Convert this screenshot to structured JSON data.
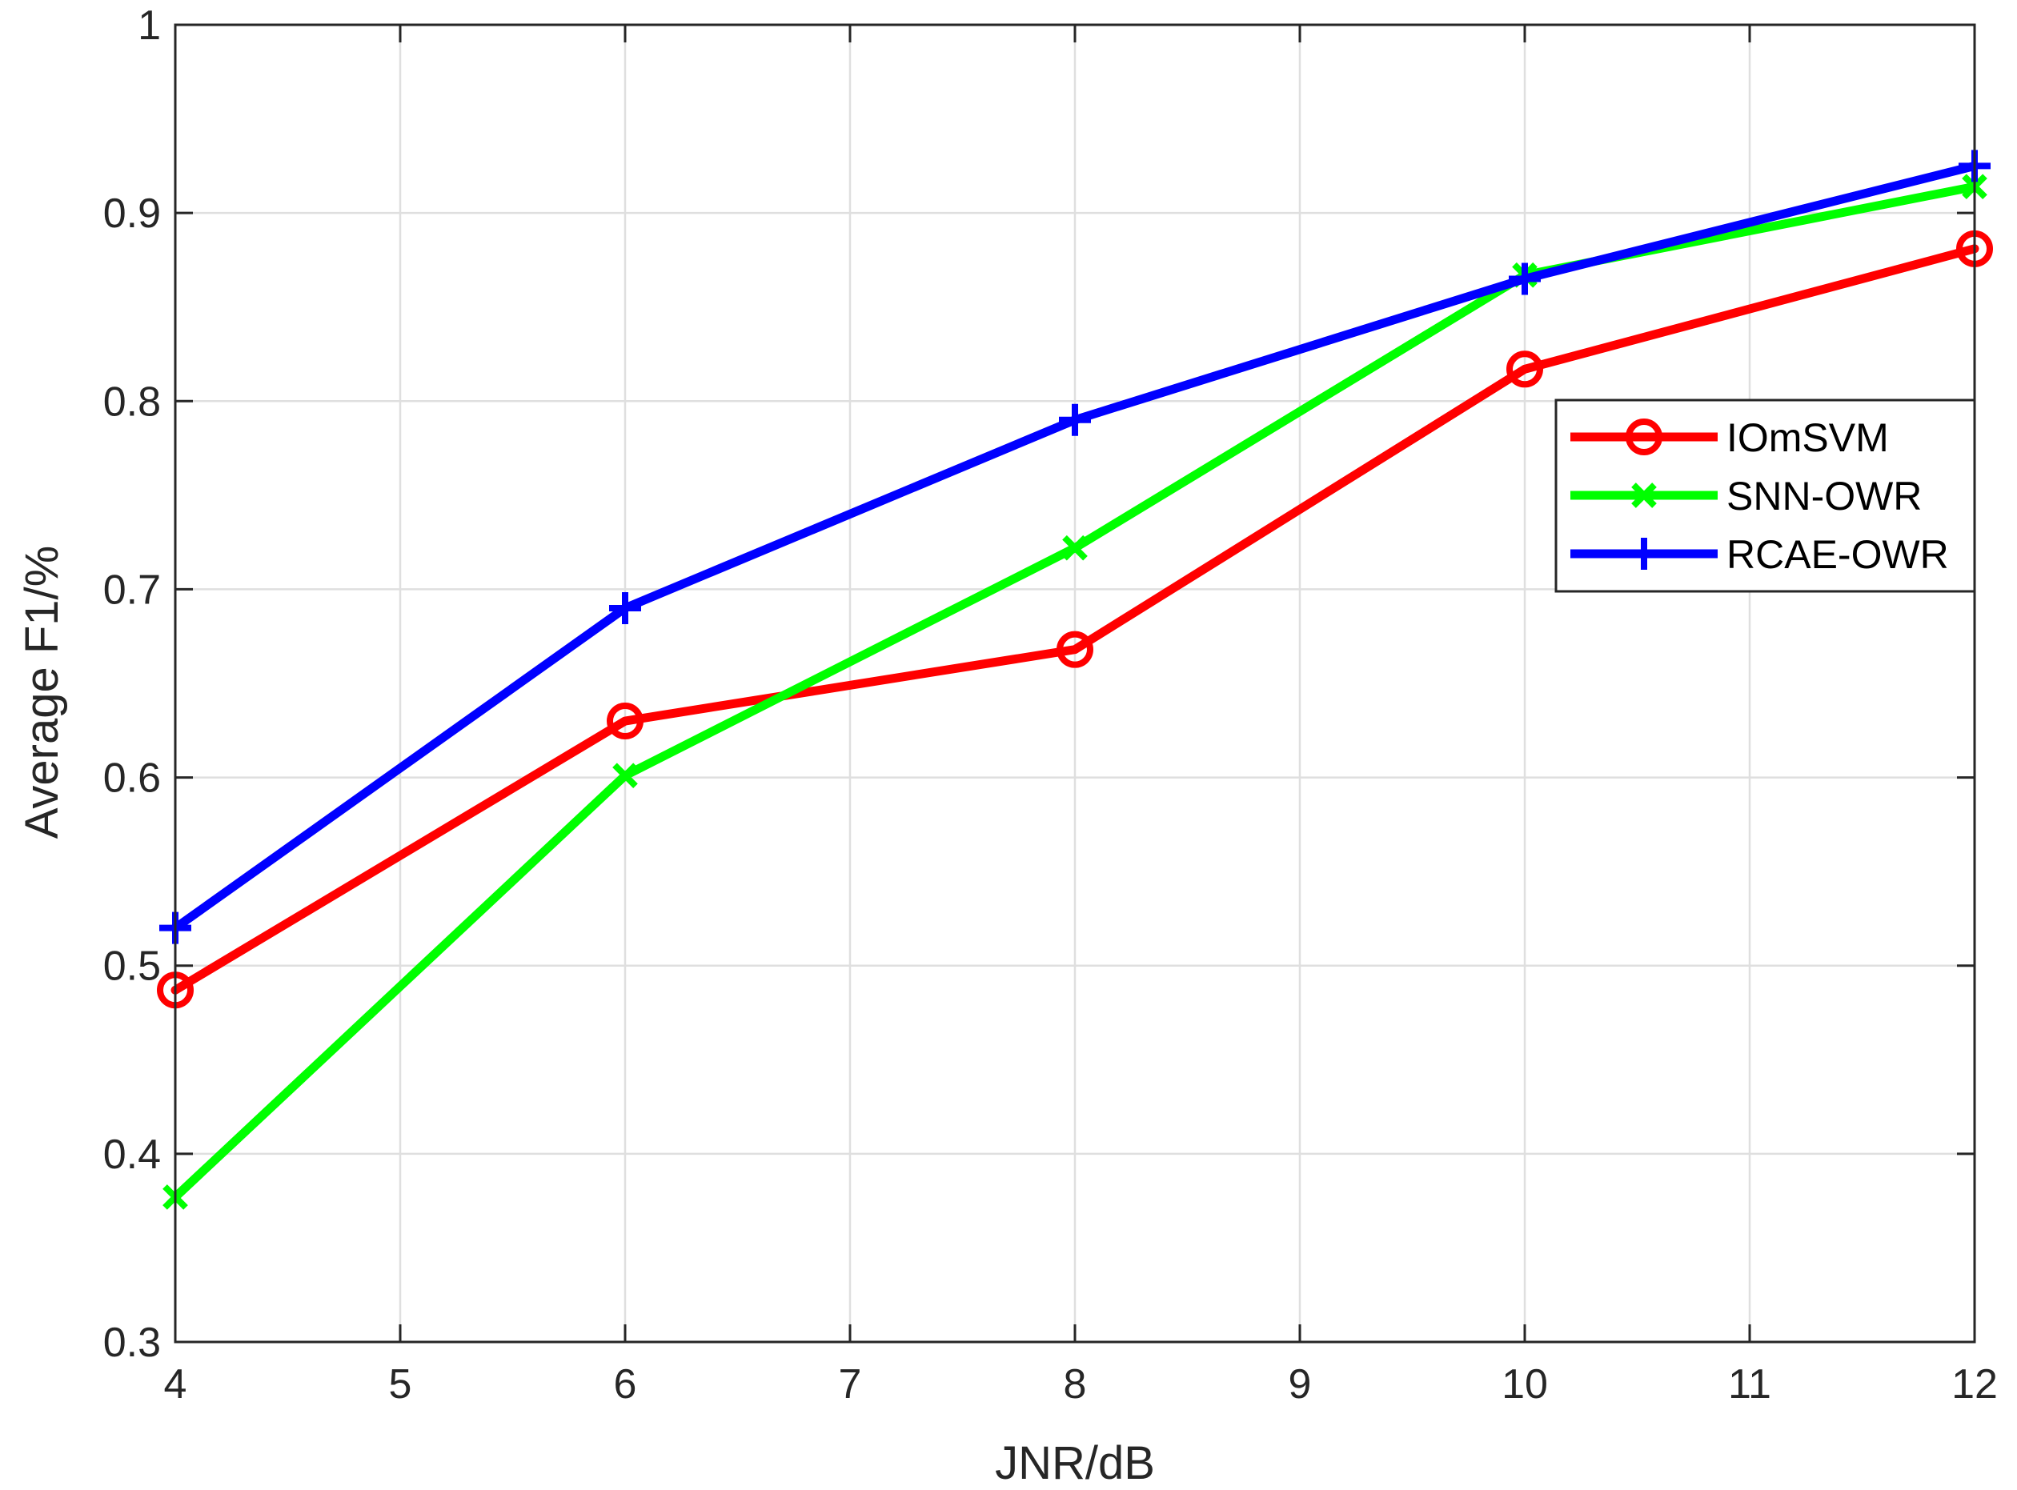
{
  "chart_data": {
    "type": "line",
    "xlabel": "JNR/dB",
    "ylabel": "Average F1/%",
    "xlim": [
      4,
      12
    ],
    "ylim": [
      0.3,
      1
    ],
    "xticks": [
      4,
      5,
      6,
      7,
      8,
      9,
      10,
      11,
      12
    ],
    "yticks": [
      0.3,
      0.4,
      0.5,
      0.6,
      0.7,
      0.8,
      0.9,
      1
    ],
    "ytick_labels": [
      "0.3",
      "0.4",
      "0.5",
      "0.6",
      "0.7",
      "0.8",
      "0.9",
      "1"
    ],
    "grid": true,
    "legend_position": "right, upper middle",
    "x": [
      4,
      6,
      8,
      10,
      12
    ],
    "series": [
      {
        "name": "IOmSVM",
        "color": "#ff0000",
        "marker": "circle",
        "values": [
          0.487,
          0.63,
          0.668,
          0.817,
          0.881
        ]
      },
      {
        "name": "SNN-OWR",
        "color": "#00ff00",
        "marker": "x",
        "values": [
          0.377,
          0.601,
          0.722,
          0.867,
          0.914
        ]
      },
      {
        "name": "RCAE-OWR",
        "color": "#0000ff",
        "marker": "plus",
        "values": [
          0.52,
          0.69,
          0.79,
          0.865,
          0.925
        ]
      }
    ]
  }
}
